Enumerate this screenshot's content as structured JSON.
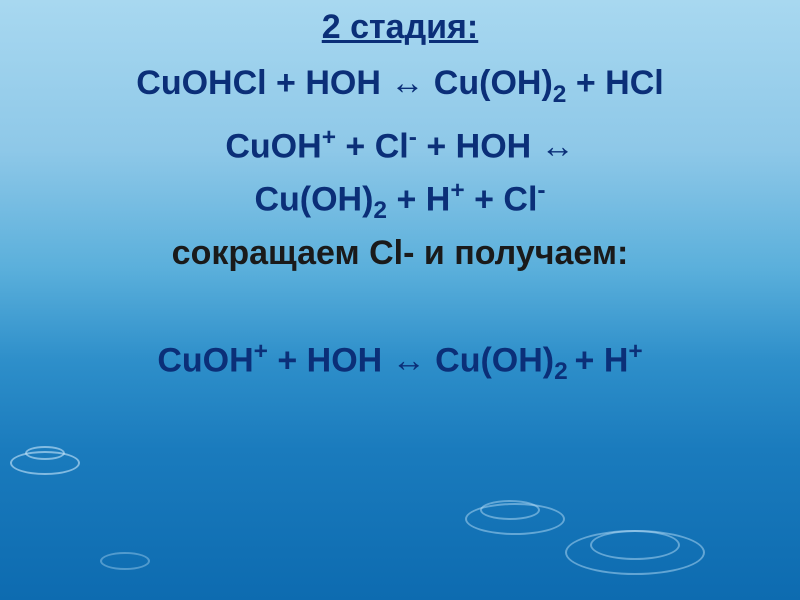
{
  "slide": {
    "background_gradient": [
      "#a8d8f0",
      "#8ec8e8",
      "#5aafdb",
      "#2e8fca",
      "#1a7bbd",
      "#0d6bb0"
    ],
    "text_color_primary": "#0b2f78",
    "text_color_secondary": "#1a1a1a",
    "font_size_pt": 34,
    "font_weight": "bold",
    "font_family": "Arial"
  },
  "title": "2 стадия:",
  "lines": {
    "l1_a": "CuOHCl + HOH ",
    "l1_arrow": "↔",
    "l1_b": " Cu(OH)",
    "l1_sub": "2",
    "l1_c": " + HCl",
    "l2_a": "CuOH",
    "l2_sup1": "+",
    "l2_b": " + Cl",
    "l2_sup2": "-",
    "l2_c": " + HOH ",
    "l2_arrow": "↔",
    "l3_a": "Cu(OH)",
    "l3_sub": "2",
    "l3_b": " + H",
    "l3_sup1": "+",
    "l3_c": " + Cl",
    "l3_sup2": "-",
    "l4": "сокращаем Cl- и получаем:",
    "l5_a": "CuOH",
    "l5_sup1": "+",
    "l5_b": " + HOH ",
    "l5_arrow": "↔",
    "l5_c": " Cu(OH)",
    "l5_sub": "2 ",
    "l5_d": " + H",
    "l5_sup2": "+"
  }
}
